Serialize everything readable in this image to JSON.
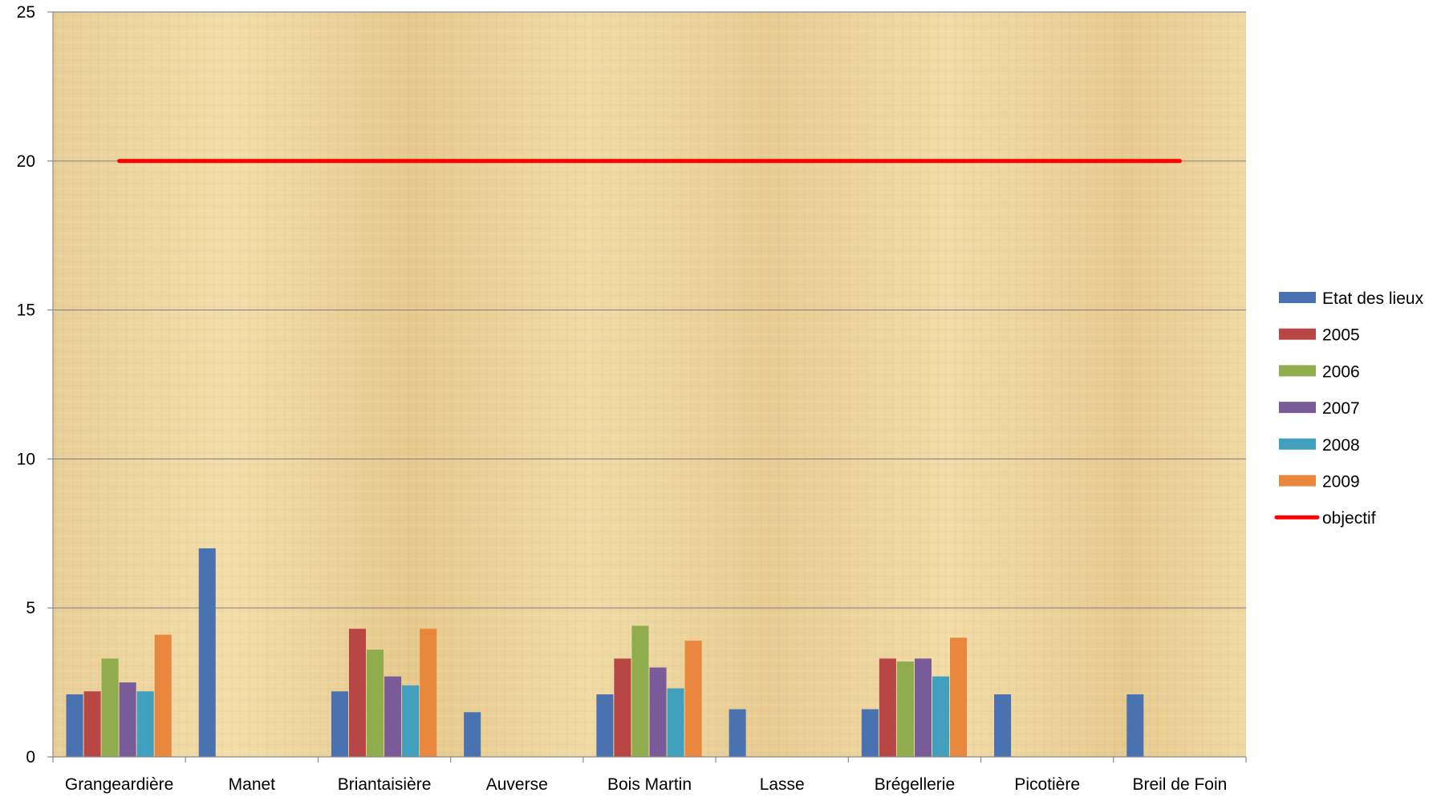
{
  "chart_data": {
    "type": "bar",
    "title": "",
    "xlabel": "",
    "ylabel": "",
    "ylim": [
      0,
      25
    ],
    "yticks": [
      0,
      5,
      10,
      15,
      20,
      25
    ],
    "grid": true,
    "legend_position": "right",
    "categories": [
      "Grangeardière",
      "Manet",
      "Briantaisière",
      "Auverse",
      "Bois Martin",
      "Lasse",
      "Brégellerie",
      "Picotière",
      "Breil de Foin"
    ],
    "series": [
      {
        "name": "Etat des lieux",
        "type": "bar",
        "color": "#4a72b0",
        "values": [
          2.1,
          7.0,
          2.2,
          1.5,
          2.1,
          1.6,
          1.6,
          2.1,
          2.1
        ]
      },
      {
        "name": "2005",
        "type": "bar",
        "color": "#b84644",
        "values": [
          2.2,
          null,
          4.3,
          null,
          3.3,
          null,
          3.3,
          null,
          null
        ]
      },
      {
        "name": "2006",
        "type": "bar",
        "color": "#8fad4c",
        "values": [
          3.3,
          null,
          3.6,
          null,
          4.4,
          null,
          3.2,
          null,
          null
        ]
      },
      {
        "name": "2007",
        "type": "bar",
        "color": "#7a5b9a",
        "values": [
          2.5,
          null,
          2.7,
          null,
          3.0,
          null,
          3.3,
          null,
          null
        ]
      },
      {
        "name": "2008",
        "type": "bar",
        "color": "#41a0bd",
        "values": [
          2.2,
          null,
          2.4,
          null,
          2.3,
          null,
          2.7,
          null,
          null
        ]
      },
      {
        "name": "2009",
        "type": "bar",
        "color": "#e8873d",
        "values": [
          4.1,
          null,
          4.3,
          null,
          3.9,
          null,
          4.0,
          null,
          null
        ]
      },
      {
        "name": "objectif",
        "type": "line",
        "color": "#ff0000",
        "values": [
          20,
          20,
          20,
          20,
          20,
          20,
          20,
          20,
          20
        ]
      }
    ]
  }
}
